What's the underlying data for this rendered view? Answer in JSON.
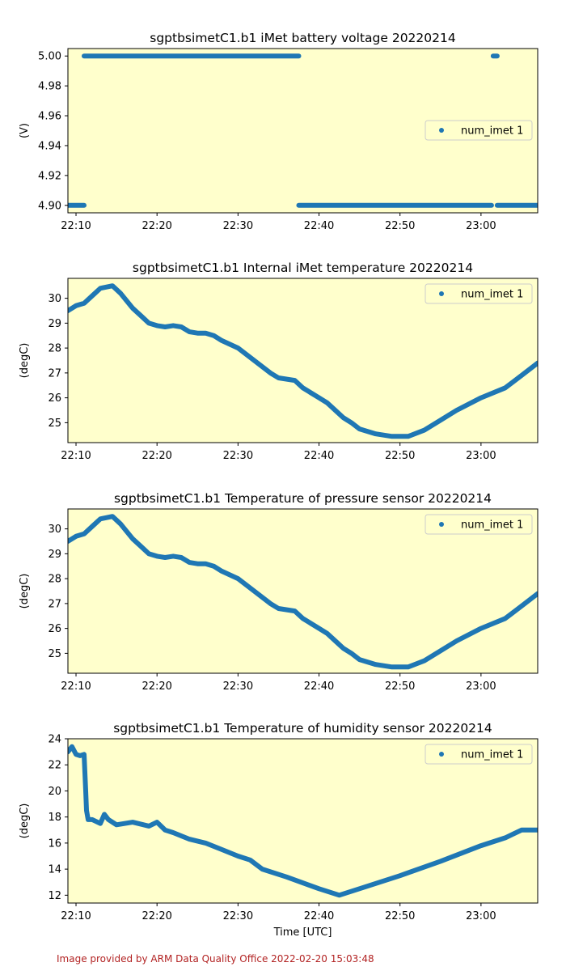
{
  "footer": "Image provided by ARM Data Quality Office 2022-02-20 15:03:48",
  "chart_data": [
    {
      "type": "scatter",
      "title": "sgptbsimetC1.b1 iMet battery voltage 20220214",
      "ylabel": "(V)",
      "xlabel": "",
      "xlim": [
        "22:09",
        "23:07"
      ],
      "ylim": [
        4.895,
        5.005
      ],
      "yticks": [
        4.9,
        4.92,
        4.94,
        4.96,
        4.98,
        5.0
      ],
      "ytick_labels": [
        "4.90",
        "4.92",
        "4.94",
        "4.96",
        "4.98",
        "5.00"
      ],
      "xticks": [
        "22:10",
        "22:20",
        "22:30",
        "22:40",
        "22:50",
        "23:00"
      ],
      "legend": {
        "position": "center-right",
        "entries": [
          "num_imet 1"
        ]
      },
      "series": [
        {
          "name": "num_imet 1",
          "color": "#1f77b4",
          "x": [
            "22:09",
            "22:11",
            "22:11",
            "22:37.5",
            "22:37.5",
            "23:01.3",
            "23:01.5",
            "23:02",
            "23:02",
            "23:07"
          ],
          "y": [
            4.9,
            4.9,
            5.0,
            5.0,
            4.9,
            4.9,
            5.0,
            5.0,
            4.9,
            4.9
          ],
          "segments": [
            [
              0,
              1
            ],
            [
              2,
              3
            ],
            [
              4,
              5
            ],
            [
              6,
              7
            ],
            [
              8,
              9
            ]
          ]
        }
      ]
    },
    {
      "type": "scatter",
      "title": "sgptbsimetC1.b1 Internal iMet temperature 20220214",
      "ylabel": "(degC)",
      "xlabel": "",
      "xlim": [
        "22:09",
        "23:07"
      ],
      "ylim": [
        24.2,
        30.8
      ],
      "yticks": [
        25,
        26,
        27,
        28,
        29,
        30
      ],
      "ytick_labels": [
        "25",
        "26",
        "27",
        "28",
        "29",
        "30"
      ],
      "xticks": [
        "22:10",
        "22:20",
        "22:30",
        "22:40",
        "22:50",
        "23:00"
      ],
      "legend": {
        "position": "top-right",
        "entries": [
          "num_imet 1"
        ]
      },
      "series": [
        {
          "name": "num_imet 1",
          "color": "#1f77b4",
          "x": [
            "22:09",
            "22:10",
            "22:11",
            "22:12",
            "22:13",
            "22:14.5",
            "22:15.5",
            "22:17",
            "22:18",
            "22:19",
            "22:20",
            "22:21",
            "22:22",
            "22:23",
            "22:24",
            "22:25",
            "22:26",
            "22:27",
            "22:28",
            "22:30",
            "22:32",
            "22:34",
            "22:35",
            "22:37",
            "22:38",
            "22:40",
            "22:41",
            "22:42",
            "22:43",
            "22:44",
            "22:45",
            "22:47",
            "22:49",
            "22:51",
            "22:53",
            "22:55",
            "22:57",
            "23:00",
            "23:03",
            "23:05",
            "23:07"
          ],
          "y": [
            29.5,
            29.7,
            29.8,
            30.1,
            30.4,
            30.5,
            30.2,
            29.6,
            29.3,
            29.0,
            28.9,
            28.85,
            28.9,
            28.85,
            28.65,
            28.6,
            28.6,
            28.5,
            28.3,
            28.0,
            27.5,
            27.0,
            26.8,
            26.7,
            26.4,
            26.0,
            25.8,
            25.5,
            25.2,
            25.0,
            24.75,
            24.55,
            24.45,
            24.45,
            24.7,
            25.1,
            25.5,
            26.0,
            26.4,
            26.9,
            27.4
          ]
        }
      ]
    },
    {
      "type": "scatter",
      "title": "sgptbsimetC1.b1 Temperature of pressure sensor 20220214",
      "ylabel": "(degC)",
      "xlabel": "",
      "xlim": [
        "22:09",
        "23:07"
      ],
      "ylim": [
        24.2,
        30.8
      ],
      "yticks": [
        25,
        26,
        27,
        28,
        29,
        30
      ],
      "ytick_labels": [
        "25",
        "26",
        "27",
        "28",
        "29",
        "30"
      ],
      "xticks": [
        "22:10",
        "22:20",
        "22:30",
        "22:40",
        "22:50",
        "23:00"
      ],
      "legend": {
        "position": "top-right",
        "entries": [
          "num_imet 1"
        ]
      },
      "series": [
        {
          "name": "num_imet 1",
          "color": "#1f77b4",
          "x": [
            "22:09",
            "22:10",
            "22:11",
            "22:12",
            "22:13",
            "22:14.5",
            "22:15.5",
            "22:17",
            "22:18",
            "22:19",
            "22:20",
            "22:21",
            "22:22",
            "22:23",
            "22:24",
            "22:25",
            "22:26",
            "22:27",
            "22:28",
            "22:30",
            "22:32",
            "22:34",
            "22:35",
            "22:37",
            "22:38",
            "22:40",
            "22:41",
            "22:42",
            "22:43",
            "22:44",
            "22:45",
            "22:47",
            "22:49",
            "22:51",
            "22:53",
            "22:55",
            "22:57",
            "23:00",
            "23:03",
            "23:05",
            "23:07"
          ],
          "y": [
            29.5,
            29.7,
            29.8,
            30.1,
            30.4,
            30.5,
            30.2,
            29.6,
            29.3,
            29.0,
            28.9,
            28.85,
            28.9,
            28.85,
            28.65,
            28.6,
            28.6,
            28.5,
            28.3,
            28.0,
            27.5,
            27.0,
            26.8,
            26.7,
            26.4,
            26.0,
            25.8,
            25.5,
            25.2,
            25.0,
            24.75,
            24.55,
            24.45,
            24.45,
            24.7,
            25.1,
            25.5,
            26.0,
            26.4,
            26.9,
            27.4
          ]
        }
      ]
    },
    {
      "type": "scatter",
      "title": "sgptbsimetC1.b1 Temperature of humidity sensor 20220214",
      "ylabel": "(degC)",
      "xlabel": "Time [UTC]",
      "xlim": [
        "22:09",
        "23:07"
      ],
      "ylim": [
        11.4,
        24.0
      ],
      "yticks": [
        12,
        14,
        16,
        18,
        20,
        22,
        24
      ],
      "ytick_labels": [
        "12",
        "14",
        "16",
        "18",
        "20",
        "22",
        "24"
      ],
      "xticks": [
        "22:10",
        "22:20",
        "22:30",
        "22:40",
        "22:50",
        "23:00"
      ],
      "legend": {
        "position": "top-right",
        "entries": [
          "num_imet 1"
        ]
      },
      "series": [
        {
          "name": "num_imet 1",
          "color": "#1f77b4",
          "x": [
            "22:09",
            "22:09.5",
            "22:10",
            "22:10.5",
            "22:11",
            "22:11.2",
            "22:11.3",
            "22:11.5",
            "22:12",
            "22:13",
            "22:13.5",
            "22:14",
            "22:15",
            "22:17",
            "22:19",
            "22:20",
            "22:21",
            "22:22",
            "22:24",
            "22:26",
            "22:28",
            "22:30",
            "22:31.5",
            "22:33",
            "22:36",
            "22:40",
            "22:42.5",
            "22:45",
            "22:50",
            "22:55",
            "23:00",
            "23:03",
            "23:05",
            "23:07"
          ],
          "y": [
            23.0,
            23.4,
            22.8,
            22.7,
            22.8,
            20.0,
            18.5,
            17.8,
            17.8,
            17.5,
            18.2,
            17.8,
            17.4,
            17.6,
            17.3,
            17.6,
            17.0,
            16.8,
            16.3,
            16.0,
            15.5,
            15.0,
            14.7,
            14.0,
            13.4,
            12.5,
            12.0,
            12.5,
            13.5,
            14.6,
            15.8,
            16.4,
            17.0,
            17.0
          ]
        }
      ]
    }
  ]
}
